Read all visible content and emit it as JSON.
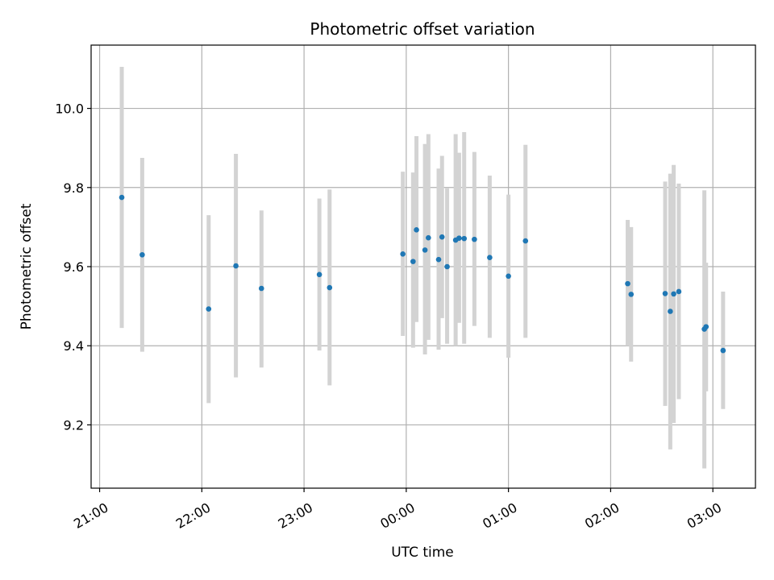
{
  "chart_data": {
    "type": "scatter",
    "title": "Photometric offset variation",
    "xlabel": "UTC time",
    "ylabel": "Photometric offset",
    "x_unit": "UTC clock time (labels wrap past midnight)",
    "xlim": [
      "20:55",
      "03:25"
    ],
    "ylim": [
      9.04,
      10.16
    ],
    "x_ticks": [
      "21:00",
      "22:00",
      "23:00",
      "00:00",
      "01:00",
      "02:00",
      "03:00"
    ],
    "y_ticks": [
      9.2,
      9.4,
      9.6,
      9.8,
      10.0
    ],
    "y_tick_labels": [
      "9.2",
      "9.4",
      "9.6",
      "9.8",
      "10.0"
    ],
    "grid": true,
    "legend": "none",
    "colors": {
      "points": "#1f77b4",
      "error_bars": "#d3d3d3"
    },
    "points": [
      {
        "x": "21:13",
        "y": 9.775,
        "ylow": 9.445,
        "yhigh": 10.105
      },
      {
        "x": "21:25",
        "y": 9.63,
        "ylow": 9.385,
        "yhigh": 9.875
      },
      {
        "x": "22:04",
        "y": 9.493,
        "ylow": 9.255,
        "yhigh": 9.73
      },
      {
        "x": "22:20",
        "y": 9.602,
        "ylow": 9.32,
        "yhigh": 9.885
      },
      {
        "x": "22:35",
        "y": 9.545,
        "ylow": 9.345,
        "yhigh": 9.742
      },
      {
        "x": "23:09",
        "y": 9.58,
        "ylow": 9.388,
        "yhigh": 9.772
      },
      {
        "x": "23:15",
        "y": 9.547,
        "ylow": 9.3,
        "yhigh": 9.795
      },
      {
        "x": "23:58",
        "y": 9.632,
        "ylow": 9.425,
        "yhigh": 9.84
      },
      {
        "x": "00:04",
        "y": 9.613,
        "ylow": 9.395,
        "yhigh": 9.838
      },
      {
        "x": "00:06",
        "y": 9.693,
        "ylow": 9.46,
        "yhigh": 9.93
      },
      {
        "x": "00:11",
        "y": 9.642,
        "ylow": 9.378,
        "yhigh": 9.91
      },
      {
        "x": "00:13",
        "y": 9.673,
        "ylow": 9.415,
        "yhigh": 9.935
      },
      {
        "x": "00:19",
        "y": 9.618,
        "ylow": 9.39,
        "yhigh": 9.848
      },
      {
        "x": "00:21",
        "y": 9.675,
        "ylow": 9.47,
        "yhigh": 9.88
      },
      {
        "x": "00:24",
        "y": 9.6,
        "ylow": 9.405,
        "yhigh": 9.798
      },
      {
        "x": "00:29",
        "y": 9.667,
        "ylow": 9.4,
        "yhigh": 9.935
      },
      {
        "x": "00:31",
        "y": 9.672,
        "ylow": 9.458,
        "yhigh": 9.888
      },
      {
        "x": "00:34",
        "y": 9.671,
        "ylow": 9.405,
        "yhigh": 9.94
      },
      {
        "x": "00:40",
        "y": 9.669,
        "ylow": 9.45,
        "yhigh": 9.89
      },
      {
        "x": "00:49",
        "y": 9.623,
        "ylow": 9.42,
        "yhigh": 9.83
      },
      {
        "x": "01:00",
        "y": 9.576,
        "ylow": 9.37,
        "yhigh": 9.782
      },
      {
        "x": "01:10",
        "y": 9.665,
        "ylow": 9.42,
        "yhigh": 9.908
      },
      {
        "x": "02:10",
        "y": 9.557,
        "ylow": 9.4,
        "yhigh": 9.718
      },
      {
        "x": "02:12",
        "y": 9.53,
        "ylow": 9.36,
        "yhigh": 9.7
      },
      {
        "x": "02:32",
        "y": 9.532,
        "ylow": 9.248,
        "yhigh": 9.815
      },
      {
        "x": "02:35",
        "y": 9.487,
        "ylow": 9.138,
        "yhigh": 9.835
      },
      {
        "x": "02:37",
        "y": 9.531,
        "ylow": 9.205,
        "yhigh": 9.857
      },
      {
        "x": "02:40",
        "y": 9.537,
        "ylow": 9.265,
        "yhigh": 9.81
      },
      {
        "x": "02:55",
        "y": 9.442,
        "ylow": 9.09,
        "yhigh": 9.793
      },
      {
        "x": "02:56",
        "y": 9.448,
        "ylow": 9.285,
        "yhigh": 9.61
      },
      {
        "x": "03:06",
        "y": 9.388,
        "ylow": 9.24,
        "yhigh": 9.537
      }
    ]
  }
}
